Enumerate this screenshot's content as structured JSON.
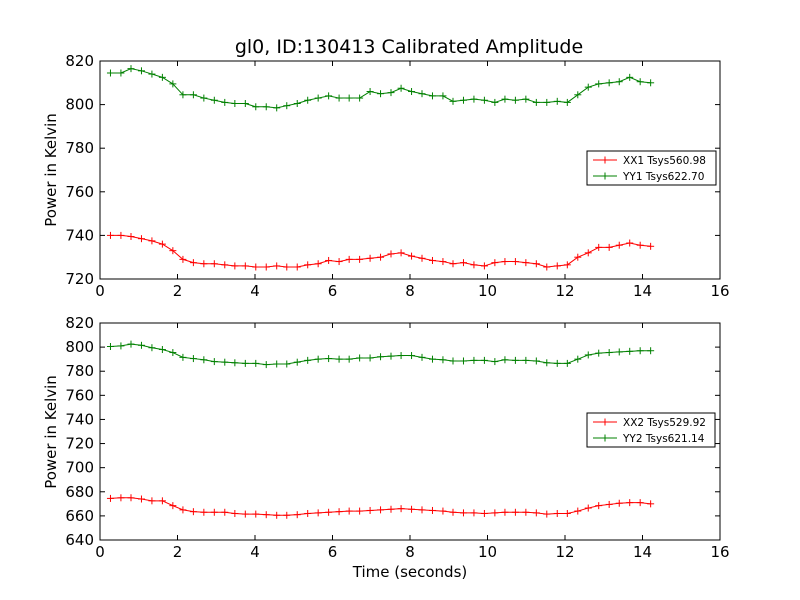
{
  "chart_data": [
    {
      "type": "line",
      "title": "gl0, ID:130413 Calibrated Amplitude",
      "xlabel": "",
      "ylabel": "Power in Kelvin",
      "xlim": [
        0,
        16
      ],
      "ylim": [
        720,
        820
      ],
      "xticks": [
        "0",
        "2",
        "4",
        "6",
        "8",
        "10",
        "12",
        "14",
        "16"
      ],
      "yticks": [
        "720",
        "740",
        "760",
        "780",
        "800",
        "820"
      ],
      "legend_position": "center-right",
      "x": [
        0.27,
        0.54,
        0.8,
        1.07,
        1.34,
        1.61,
        1.88,
        2.14,
        2.41,
        2.68,
        2.95,
        3.22,
        3.48,
        3.75,
        4.02,
        4.29,
        4.56,
        4.82,
        5.09,
        5.36,
        5.63,
        5.9,
        6.17,
        6.43,
        6.7,
        6.97,
        7.24,
        7.51,
        7.77,
        8.04,
        8.31,
        8.58,
        8.85,
        9.11,
        9.38,
        9.65,
        9.92,
        10.19,
        10.45,
        10.72,
        10.99,
        11.26,
        11.53,
        11.8,
        12.06,
        12.33,
        12.6,
        12.87,
        13.14,
        13.4,
        13.67,
        13.94,
        14.21
      ],
      "series": [
        {
          "name": "XX1 Tsys560.98",
          "color": "#ff0000",
          "values": [
            740,
            740,
            739.5,
            738.5,
            737.5,
            736,
            733,
            729,
            727.5,
            727,
            727,
            726.5,
            726,
            726,
            725.5,
            725.5,
            726,
            725.5,
            725.5,
            726.5,
            727,
            728.5,
            728,
            729,
            729,
            729.5,
            730,
            731.5,
            732,
            730.5,
            729.5,
            728.5,
            728,
            727,
            727.5,
            726.5,
            726,
            727.5,
            728,
            728,
            727.5,
            727,
            725.5,
            726,
            726.5,
            730,
            732,
            734.5,
            734.5,
            735.5,
            736.5,
            735.5,
            735
          ]
        },
        {
          "name": "YY1 Tsys622.70",
          "color": "#008000",
          "values": [
            814.5,
            814.5,
            816.5,
            815.5,
            814,
            812.5,
            809.5,
            804.5,
            804.5,
            803,
            802,
            801,
            800.5,
            800.5,
            799,
            799,
            798.5,
            799.5,
            800.5,
            802,
            803,
            804,
            803,
            803,
            803,
            806,
            805,
            805.5,
            807.5,
            806,
            805,
            804,
            804,
            801.5,
            802,
            802.5,
            802,
            801,
            802.5,
            802,
            802.5,
            801,
            801,
            801.5,
            801,
            804.5,
            808,
            809.5,
            810,
            810.5,
            812.5,
            810.5,
            810
          ]
        }
      ]
    },
    {
      "type": "line",
      "title": "",
      "xlabel": "Time (seconds)",
      "ylabel": "Power in Kelvin",
      "xlim": [
        0,
        16
      ],
      "ylim": [
        640,
        820
      ],
      "xticks": [
        "0",
        "2",
        "4",
        "6",
        "8",
        "10",
        "12",
        "14",
        "16"
      ],
      "yticks": [
        "640",
        "660",
        "680",
        "700",
        "720",
        "740",
        "760",
        "780",
        "800",
        "820"
      ],
      "legend_position": "center-right",
      "x": [
        0.27,
        0.54,
        0.8,
        1.07,
        1.34,
        1.61,
        1.88,
        2.14,
        2.41,
        2.68,
        2.95,
        3.22,
        3.48,
        3.75,
        4.02,
        4.29,
        4.56,
        4.82,
        5.09,
        5.36,
        5.63,
        5.9,
        6.17,
        6.43,
        6.7,
        6.97,
        7.24,
        7.51,
        7.77,
        8.04,
        8.31,
        8.58,
        8.85,
        9.11,
        9.38,
        9.65,
        9.92,
        10.19,
        10.45,
        10.72,
        10.99,
        11.26,
        11.53,
        11.8,
        12.06,
        12.33,
        12.6,
        12.87,
        13.14,
        13.4,
        13.67,
        13.94,
        14.21
      ],
      "series": [
        {
          "name": "XX2 Tsys529.92",
          "color": "#ff0000",
          "values": [
            674.5,
            675,
            675,
            674,
            672.5,
            672.5,
            668.5,
            665,
            663.5,
            663,
            663,
            663,
            662,
            661.5,
            661.5,
            661,
            660.5,
            660.5,
            661,
            662,
            662.5,
            663,
            663.5,
            664,
            664,
            664.5,
            665,
            665.5,
            666,
            665.5,
            665,
            664.5,
            664,
            663,
            662.5,
            662.5,
            662,
            662.5,
            663,
            663,
            663,
            662.5,
            661.5,
            662,
            662,
            664,
            666.5,
            668.5,
            669.5,
            670.5,
            671,
            671,
            670
          ]
        },
        {
          "name": "YY2 Tsys621.14",
          "color": "#008000",
          "values": [
            800.5,
            801,
            802.5,
            801.5,
            799.5,
            798,
            795.5,
            791.5,
            790.5,
            789.5,
            788,
            787.5,
            787,
            786.5,
            786.5,
            785.5,
            786,
            786,
            787.5,
            789,
            790,
            790.5,
            790,
            790,
            791,
            791,
            792,
            792.5,
            793,
            793,
            791.5,
            790,
            789.5,
            788.5,
            788.5,
            789,
            789,
            788,
            789.5,
            789,
            789,
            788.5,
            787,
            786.5,
            786.5,
            790,
            793.5,
            795,
            795.5,
            796,
            796.5,
            797,
            797
          ]
        }
      ]
    }
  ]
}
